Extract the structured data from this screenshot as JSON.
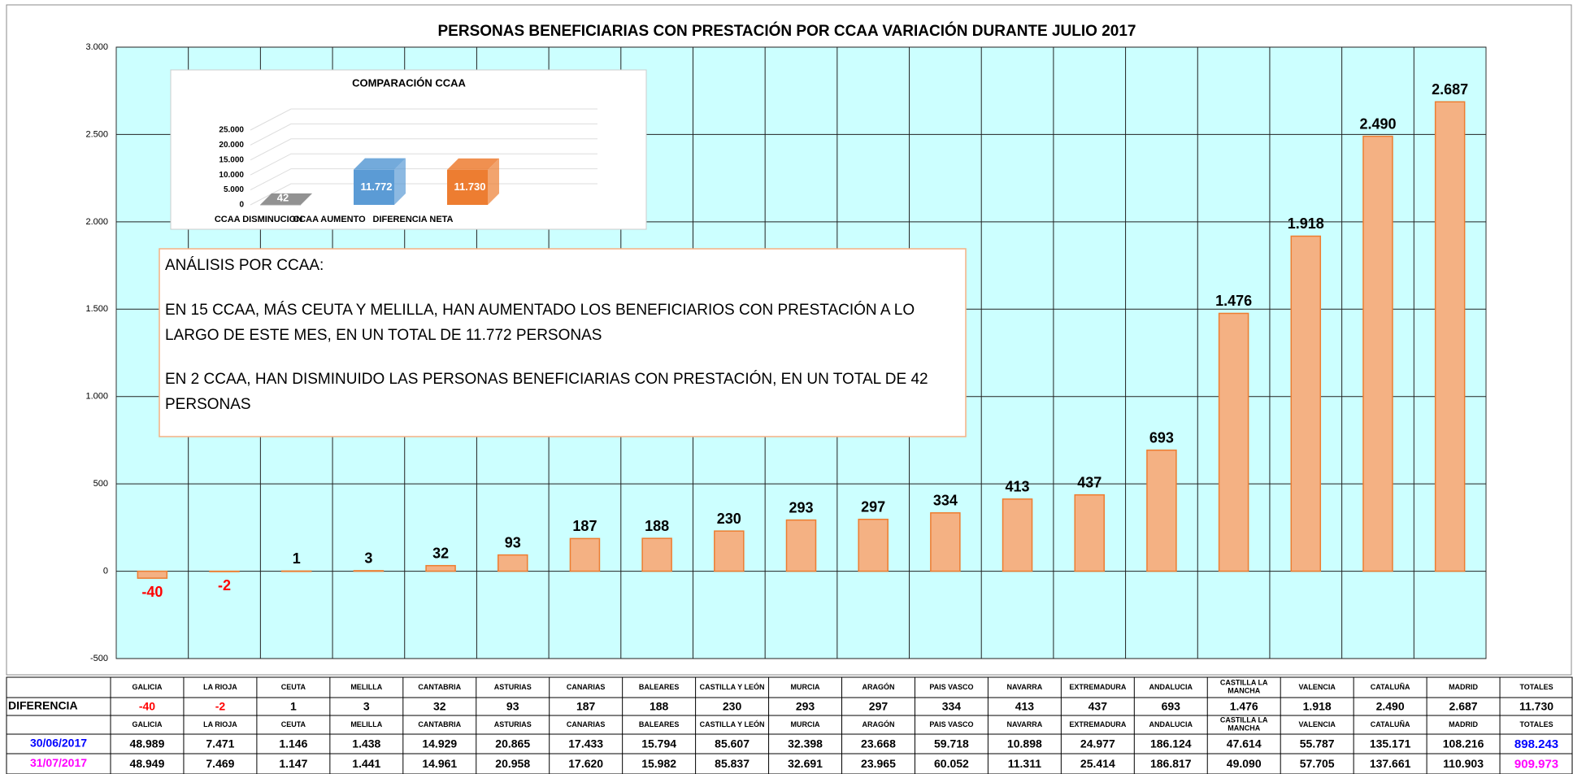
{
  "chart_data": [
    {
      "type": "bar",
      "title": "PERSONAS BENEFICIARIAS CON PRESTACIÓN POR CCAA VARIACIÓN DURANTE JULIO 2017",
      "values": [
        -40,
        -2,
        1,
        3,
        32,
        93,
        187,
        188,
        230,
        293,
        297,
        334,
        413,
        437,
        693,
        1476,
        1918,
        2490,
        2687
      ],
      "value_labels": [
        "-40",
        "-2",
        "1",
        "3",
        "32",
        "93",
        "187",
        "188",
        "230",
        "293",
        "297",
        "334",
        "413",
        "437",
        "693",
        "1.476",
        "1.918",
        "2.490",
        "2.687"
      ],
      "color": "#f4b183",
      "edge_color": "#ed7d31",
      "negative_label_color": "#ff0000",
      "background": "#ccffff",
      "ylim": [
        -500,
        3000
      ],
      "yticks": [
        -500,
        0,
        {
          "value": 500,
          "label": "500"
        },
        {
          "value": 1000,
          "label": "1.000"
        },
        {
          "value": 1500,
          "label": "1.500"
        },
        {
          "value": 2000,
          "label": "2.000"
        },
        {
          "value": 2500,
          "label": "2.500"
        },
        {
          "value": 3000,
          "label": "3.000"
        }
      ],
      "grid": true
    },
    {
      "type": "bar3d",
      "title": "COMPARACIÓN CCAA",
      "categories": [
        "CCAA DISMINUCION",
        "CCAA AUMENTO",
        "DIFERENCIA NETA"
      ],
      "values": [
        42,
        11772,
        11730
      ],
      "value_labels": [
        "42",
        "11.772",
        "11.730"
      ],
      "colors": [
        "#7f7f7f",
        "#5b9bd5",
        "#ed7d31"
      ],
      "ylim": [
        0,
        25000
      ],
      "yticks": [
        0,
        {
          "value": 5000,
          "label": "5.000"
        },
        {
          "value": 10000,
          "label": "10.000"
        },
        {
          "value": 15000,
          "label": "15.000"
        },
        {
          "value": 20000,
          "label": "20.000"
        },
        {
          "value": 25000,
          "label": "25.000"
        }
      ],
      "grid": true
    }
  ],
  "textbox": {
    "heading": "ANÁLISIS POR CCAA:",
    "paragraphs": [
      [
        "EN 15 CCAA, MÁS CEUTA Y MELILLA, HAN AUMENTADO LOS BENEFICIARIOS CON PRESTACIÓN A LO",
        "LARGO DE ESTE MES, EN UN TOTAL DE  11.772 PERSONAS"
      ],
      [
        "EN 2 CCAA, HAN DISMINUIDO LAS PERSONAS BENEFICIARIAS CON PRESTACIÓN, EN UN TOTAL DE 42",
        "PERSONAS"
      ]
    ]
  },
  "table": {
    "columns": [
      "GALICIA",
      "LA RIOJA",
      "CEUTA",
      "MELILLA",
      "CANTABRIA",
      "ASTURIAS",
      "CANARIAS",
      "BALEARES",
      "CASTILLA Y LEÓN",
      "MURCIA",
      "ARAGÓN",
      "PAIS VASCO",
      "NAVARRA",
      "EXTREMADURA",
      "ANDALUCIA",
      "CASTILLA LA MANCHA",
      "VALENCIA",
      "CATALUÑA",
      "MADRID",
      "TOTALES"
    ],
    "negative_color": "#ff0000",
    "rows": [
      {
        "label": "DIFERENCIA",
        "color": "#000000",
        "cells": [
          "-40",
          "-2",
          "1",
          "3",
          "32",
          "93",
          "187",
          "188",
          "230",
          "293",
          "297",
          "334",
          "413",
          "437",
          "693",
          "1.476",
          "1.918",
          "2.490",
          "2.687",
          "11.730"
        ]
      },
      {
        "label": "30/06/2017",
        "color": "#0000ff",
        "cells": [
          "48.989",
          "7.471",
          "1.146",
          "1.438",
          "14.929",
          "20.865",
          "17.433",
          "15.794",
          "85.607",
          "32.398",
          "23.668",
          "59.718",
          "10.898",
          "24.977",
          "186.124",
          "47.614",
          "55.787",
          "135.171",
          "108.216",
          "898.243"
        ]
      },
      {
        "label": "31/07/2017",
        "color": "#ff00ff",
        "cells": [
          "48.949",
          "7.469",
          "1.147",
          "1.441",
          "14.961",
          "20.958",
          "17.620",
          "15.982",
          "85.837",
          "32.691",
          "23.965",
          "60.052",
          "11.311",
          "25.414",
          "186.817",
          "49.090",
          "57.705",
          "137.661",
          "110.903",
          "909.973"
        ]
      }
    ]
  }
}
